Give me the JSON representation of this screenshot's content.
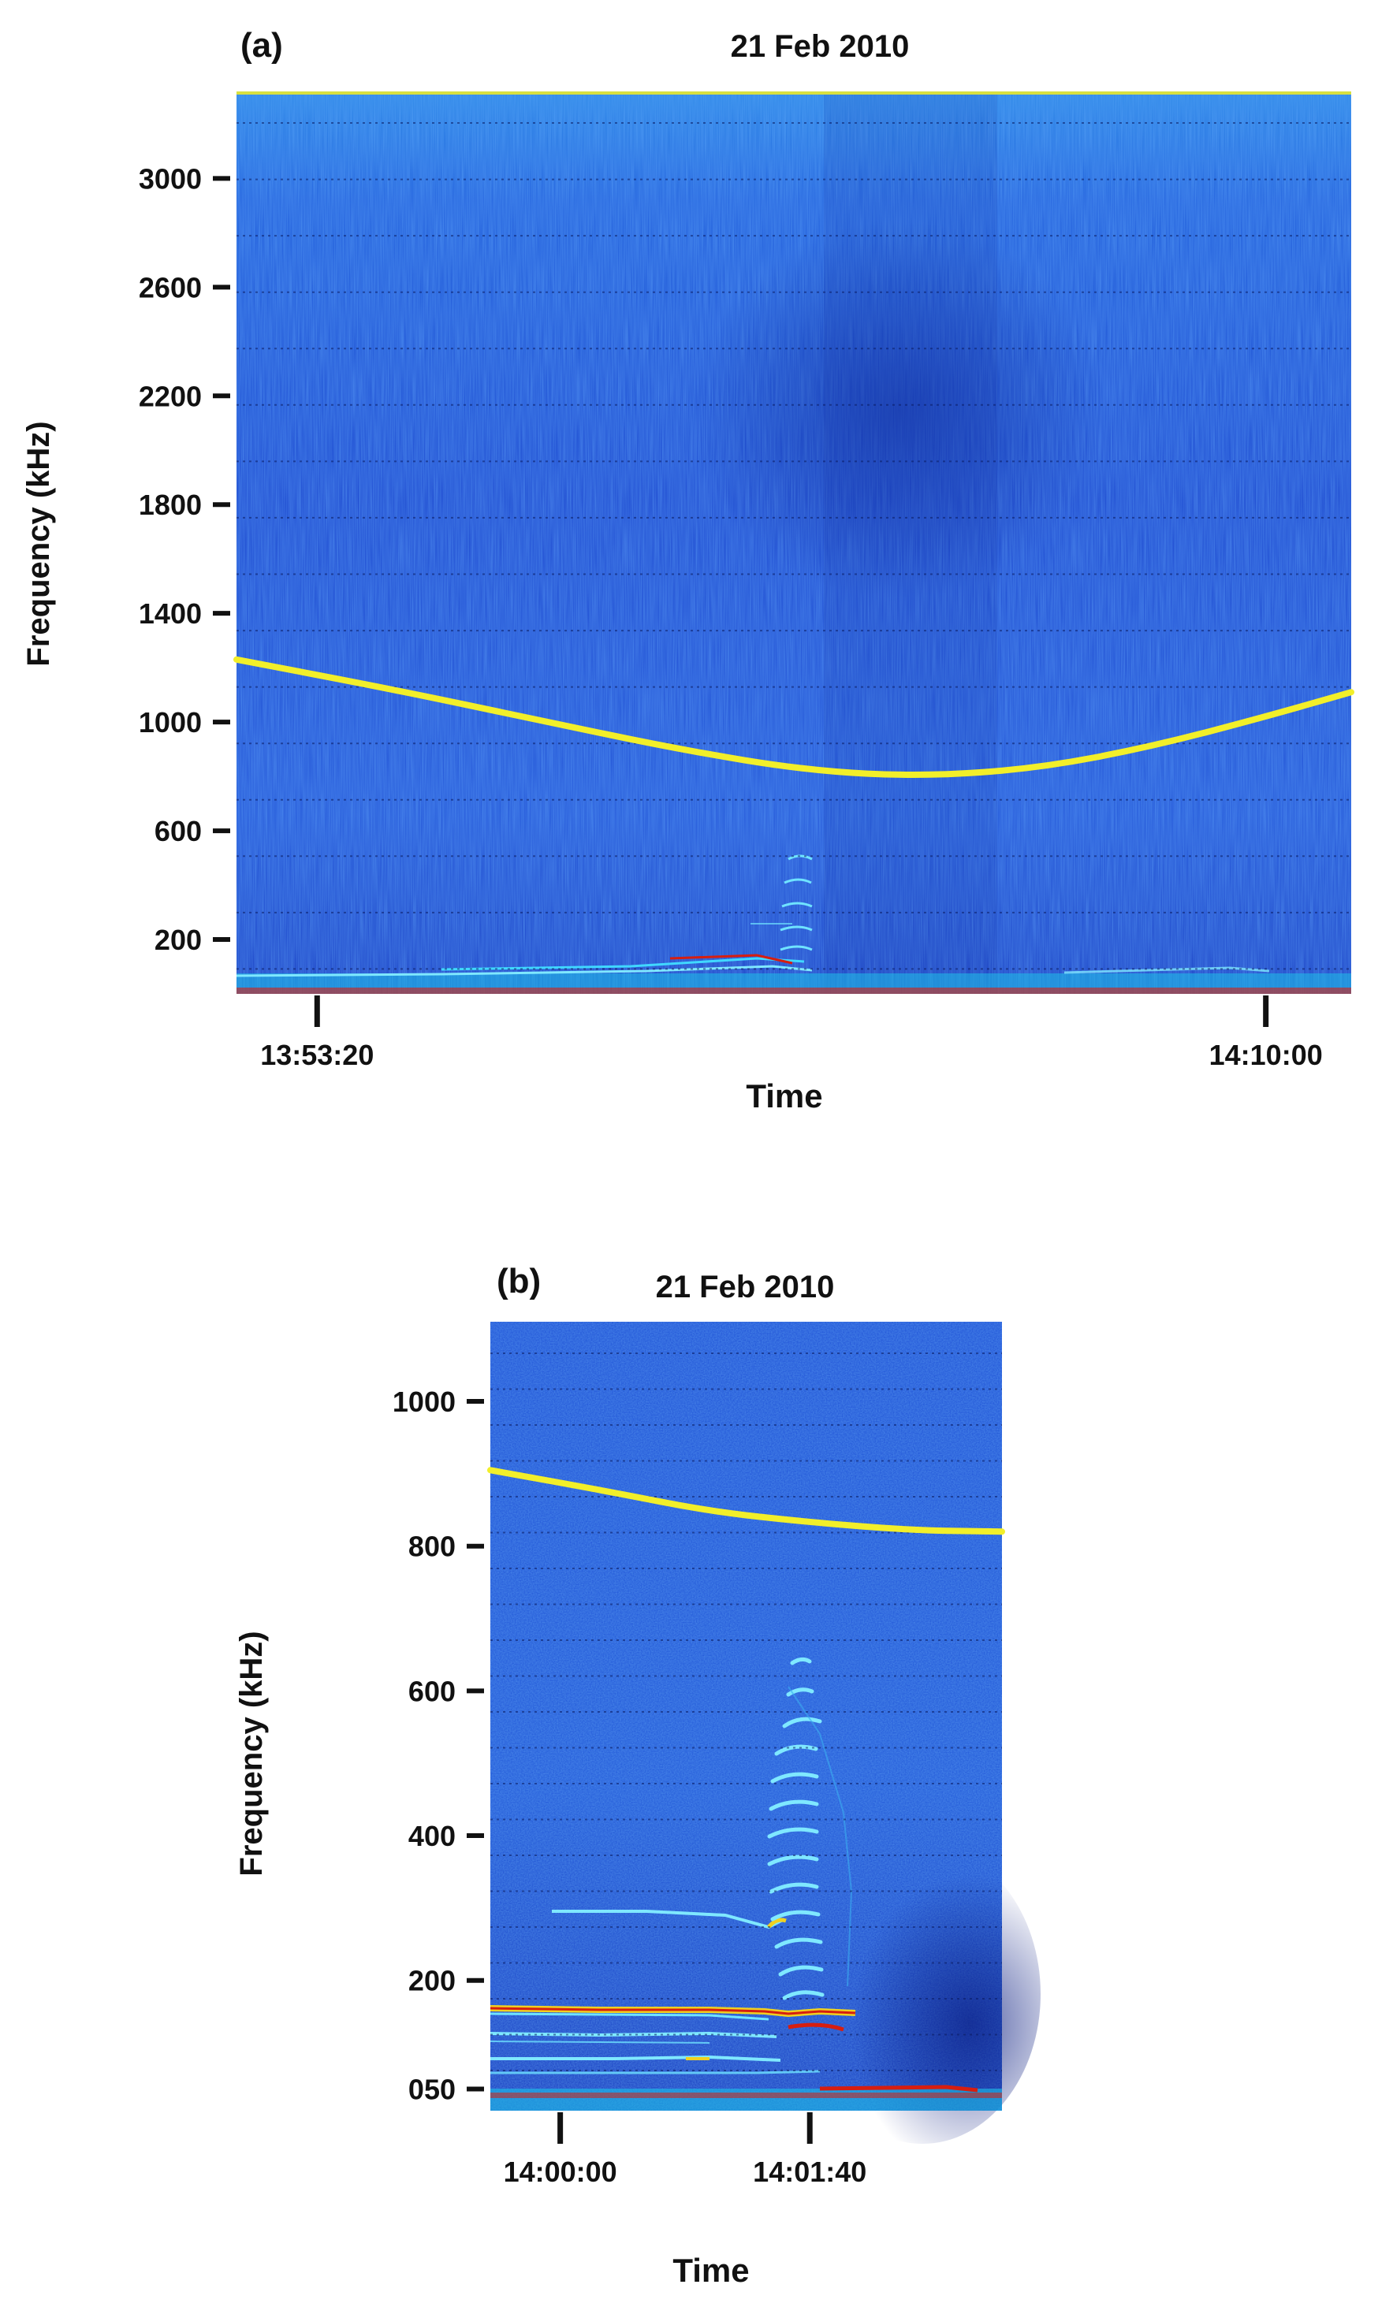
{
  "panels": [
    {
      "label": "(a)",
      "title": "21 Feb 2010"
    },
    {
      "label": "(b)",
      "title": "21 Feb 2010"
    }
  ],
  "colors": {
    "background_blue": "#1f4fd8",
    "deep_blue": "#1432a8",
    "cyan": "#33c8f0",
    "trace_yellow": "#f2ef2a",
    "red": "#d61e10",
    "axis": "#111111"
  },
  "chart_data": [
    {
      "type": "heatmap",
      "title": "21 Feb 2010",
      "xlabel": "Time",
      "ylabel": "Frequency (kHz)",
      "x_ticks": [
        "13:53:20",
        "14:10:00"
      ],
      "x_tick_seconds": [
        0,
        1000
      ],
      "xlim_seconds": [
        -85,
        1090
      ],
      "y_ticks": [
        200,
        600,
        1000,
        1400,
        1800,
        2200,
        2600,
        3000
      ],
      "y_tick_labels": [
        "200",
        "600",
        "1000",
        "1400",
        "1800",
        "2200",
        "2600",
        "3000"
      ],
      "ylim": [
        0,
        3320
      ],
      "grid": "dotted horizontal",
      "series": [
        {
          "name": "",
          "x_seconds": [
            -85,
            80,
            230,
            380,
            520,
            640,
            760,
            880,
            1000,
            1090
          ],
          "y": [
            1230,
            1120,
            1010,
            900,
            820,
            800,
            830,
            910,
            1020,
            1110
          ]
        }
      ]
    },
    {
      "type": "heatmap",
      "title": "21 Feb 2010",
      "xlabel": "Time",
      "ylabel": "Frequency (kHz)",
      "x_ticks": [
        "14:00:00",
        "14:01:40"
      ],
      "x_tick_seconds": [
        0,
        100
      ],
      "xlim_seconds": [
        -28,
        177
      ],
      "y_ticks": [
        50,
        200,
        400,
        600,
        800,
        1000
      ],
      "y_tick_labels": [
        "050",
        "200",
        "400",
        "600",
        "800",
        "1000"
      ],
      "ylim": [
        20,
        1110
      ],
      "grid": "dotted horizontal",
      "series": [
        {
          "name": "",
          "x_seconds": [
            -28,
            20,
            60,
            100,
            140,
            177
          ],
          "y": [
            905,
            875,
            848,
            833,
            822,
            820
          ]
        }
      ]
    }
  ]
}
